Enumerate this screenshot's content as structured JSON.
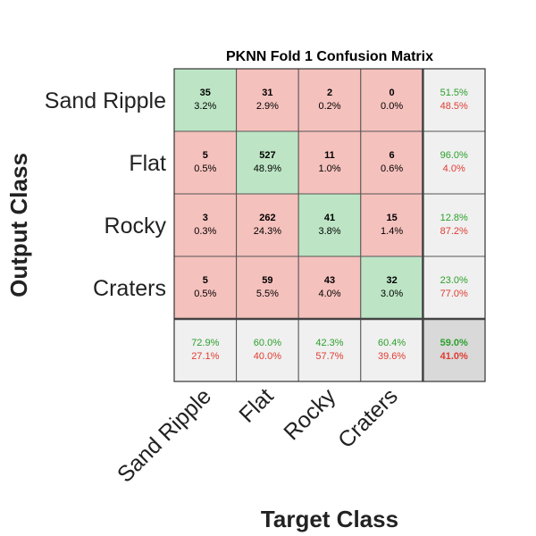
{
  "chart_data": {
    "type": "heatmap",
    "title": "PKNN Fold 1 Confusion Matrix",
    "xlabel": "Target Class",
    "ylabel": "Output Class",
    "classes": [
      "Sand Ripple",
      "Flat",
      "Rocky",
      "Craters"
    ],
    "counts": [
      [
        35,
        31,
        2,
        0
      ],
      [
        5,
        527,
        11,
        6
      ],
      [
        3,
        262,
        41,
        15
      ],
      [
        5,
        59,
        43,
        32
      ]
    ],
    "percents": [
      [
        "3.2%",
        "2.9%",
        "0.2%",
        "0.0%"
      ],
      [
        "0.5%",
        "48.9%",
        "1.0%",
        "0.6%"
      ],
      [
        "0.3%",
        "24.3%",
        "3.8%",
        "1.4%"
      ],
      [
        "0.5%",
        "5.5%",
        "4.0%",
        "3.0%"
      ]
    ],
    "row_summary": [
      {
        "correct": "51.5%",
        "incorrect": "48.5%"
      },
      {
        "correct": "96.0%",
        "incorrect": "4.0%"
      },
      {
        "correct": "12.8%",
        "incorrect": "87.2%"
      },
      {
        "correct": "23.0%",
        "incorrect": "77.0%"
      }
    ],
    "col_summary": [
      {
        "correct": "72.9%",
        "incorrect": "27.1%"
      },
      {
        "correct": "60.0%",
        "incorrect": "40.0%"
      },
      {
        "correct": "42.3%",
        "incorrect": "57.7%"
      },
      {
        "correct": "60.4%",
        "incorrect": "39.6%"
      }
    ],
    "overall": {
      "correct": "59.0%",
      "incorrect": "41.0%"
    }
  },
  "colors": {
    "diagonal": "#bde5c5",
    "off_diagonal": "#f5c1bd",
    "summary": "#f0f0f0",
    "overall": "#d9d9d9",
    "correct_text": "#2ca02c",
    "incorrect_text": "#e03c31"
  }
}
